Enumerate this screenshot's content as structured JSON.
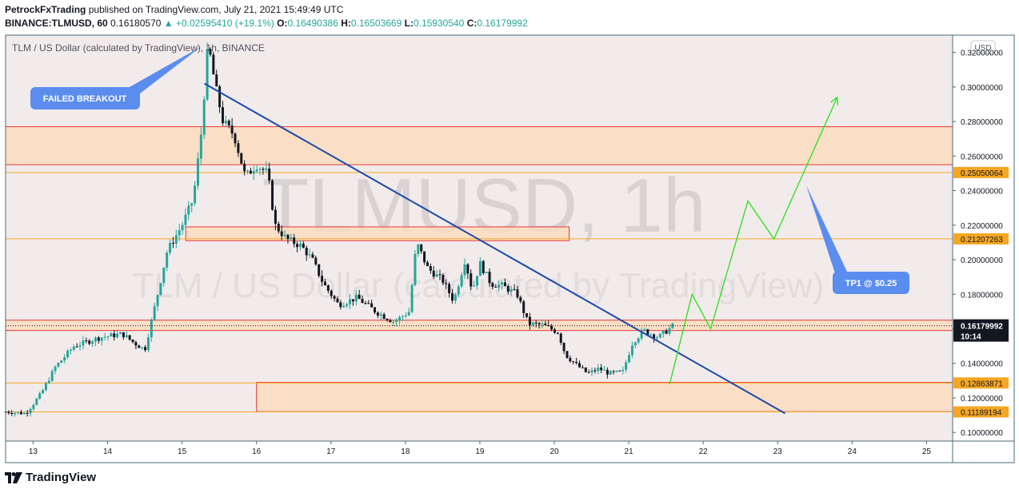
{
  "header": {
    "author": "PetrockFxTrading",
    "published": "published on TradingView.com, July 21, 2021 15:49:49 UTC",
    "symbol": "BINANCE:TLMUSD, 60",
    "last": "0.16180570",
    "change": "▲ +0.02595410 (+19.1%)",
    "o_label": "O:",
    "o": "0.16490386",
    "h_label": "H:",
    "h": "0.16503669",
    "l_label": "L:",
    "l": "0.15930540",
    "c_label": "C:",
    "c": "0.16179992"
  },
  "legend_title": "TLM / US Dollar (calculated by TradingView), 1h, BINANCE",
  "currency_button": "USD",
  "watermark": {
    "symbol": "TLMUSD, 1h",
    "description": "TLM / US Dollar (calculated by TradingView)"
  },
  "footer": {
    "brand": "TradingView"
  },
  "colors": {
    "up": "#26a69a",
    "down": "#131722",
    "zone_fill": "#fbdcc0",
    "zone_border": "#e53935",
    "level": "#f5a623",
    "trendline": "#1d4aa8",
    "projection": "#35e026",
    "callout": "#5b8def",
    "plot_bg": "#f2ebeb"
  },
  "chart_data": {
    "type": "candlestick",
    "title": "TLM / US Dollar (calculated by TradingView), 1h, BINANCE",
    "y_axis": {
      "min": 0.095,
      "max": 0.33,
      "ticks": [
        "0.32000000",
        "0.30000000",
        "0.28000000",
        "0.26000000",
        "0.24000000",
        "0.22000000",
        "0.20000000",
        "0.18000000",
        "0.16000000",
        "0.14000000",
        "0.12000000",
        "0.10000000"
      ]
    },
    "x_axis": {
      "min": 12.63,
      "max": 25.35,
      "ticks": [
        "13",
        "14",
        "15",
        "16",
        "17",
        "18",
        "19",
        "20",
        "21",
        "22",
        "23",
        "24",
        "25"
      ]
    },
    "price_path": [
      [
        12.63,
        0.112
      ],
      [
        12.9,
        0.111
      ],
      [
        13.1,
        0.122
      ],
      [
        13.3,
        0.138
      ],
      [
        13.55,
        0.15
      ],
      [
        13.9,
        0.155
      ],
      [
        14.2,
        0.157
      ],
      [
        14.35,
        0.152
      ],
      [
        14.5,
        0.148
      ],
      [
        14.65,
        0.176
      ],
      [
        14.8,
        0.205
      ],
      [
        15.0,
        0.22
      ],
      [
        15.15,
        0.235
      ],
      [
        15.25,
        0.27
      ],
      [
        15.35,
        0.325
      ],
      [
        15.45,
        0.3
      ],
      [
        15.55,
        0.28
      ],
      [
        15.7,
        0.272
      ],
      [
        15.85,
        0.248
      ],
      [
        16.0,
        0.255
      ],
      [
        16.15,
        0.25
      ],
      [
        16.25,
        0.22
      ],
      [
        16.4,
        0.212
      ],
      [
        16.6,
        0.208
      ],
      [
        16.75,
        0.2
      ],
      [
        16.9,
        0.186
      ],
      [
        17.1,
        0.174
      ],
      [
        17.35,
        0.178
      ],
      [
        17.6,
        0.17
      ],
      [
        17.85,
        0.164
      ],
      [
        18.05,
        0.17
      ],
      [
        18.15,
        0.21
      ],
      [
        18.3,
        0.195
      ],
      [
        18.5,
        0.188
      ],
      [
        18.65,
        0.176
      ],
      [
        18.8,
        0.2
      ],
      [
        18.9,
        0.182
      ],
      [
        19.0,
        0.198
      ],
      [
        19.15,
        0.186
      ],
      [
        19.3,
        0.185
      ],
      [
        19.5,
        0.18
      ],
      [
        19.65,
        0.163
      ],
      [
        19.85,
        0.162
      ],
      [
        20.05,
        0.158
      ],
      [
        20.15,
        0.145
      ],
      [
        20.3,
        0.139
      ],
      [
        20.45,
        0.134
      ],
      [
        20.6,
        0.137
      ],
      [
        20.75,
        0.134
      ],
      [
        20.92,
        0.135
      ],
      [
        21.05,
        0.152
      ],
      [
        21.2,
        0.159
      ],
      [
        21.4,
        0.155
      ],
      [
        21.6,
        0.162
      ]
    ],
    "horizontal_levels": [
      "0.25050064",
      "0.21207263",
      "0.12863871",
      "0.11189194"
    ],
    "zones": [
      {
        "x": [
          12.63,
          25.35
        ],
        "y": [
          0.255,
          0.277
        ]
      },
      {
        "x": [
          15.05,
          20.2
        ],
        "y": [
          0.211,
          0.219
        ]
      },
      {
        "x": [
          12.63,
          25.35
        ],
        "y": [
          0.159,
          0.165
        ]
      },
      {
        "x": [
          16.0,
          25.35
        ],
        "y": [
          0.112,
          0.129
        ]
      }
    ],
    "trendline": [
      [
        15.3,
        0.302
      ],
      [
        23.1,
        0.111
      ]
    ],
    "projection_path": [
      [
        21.55,
        0.128
      ],
      [
        21.85,
        0.18
      ],
      [
        22.1,
        0.16
      ],
      [
        22.6,
        0.234
      ],
      [
        22.95,
        0.212
      ],
      [
        23.8,
        0.294
      ]
    ],
    "last_price": "0.16179992",
    "countdown": "10:14",
    "annotations": [
      "FAILED BREAKOUT",
      "TP1 @ $0.25"
    ]
  }
}
